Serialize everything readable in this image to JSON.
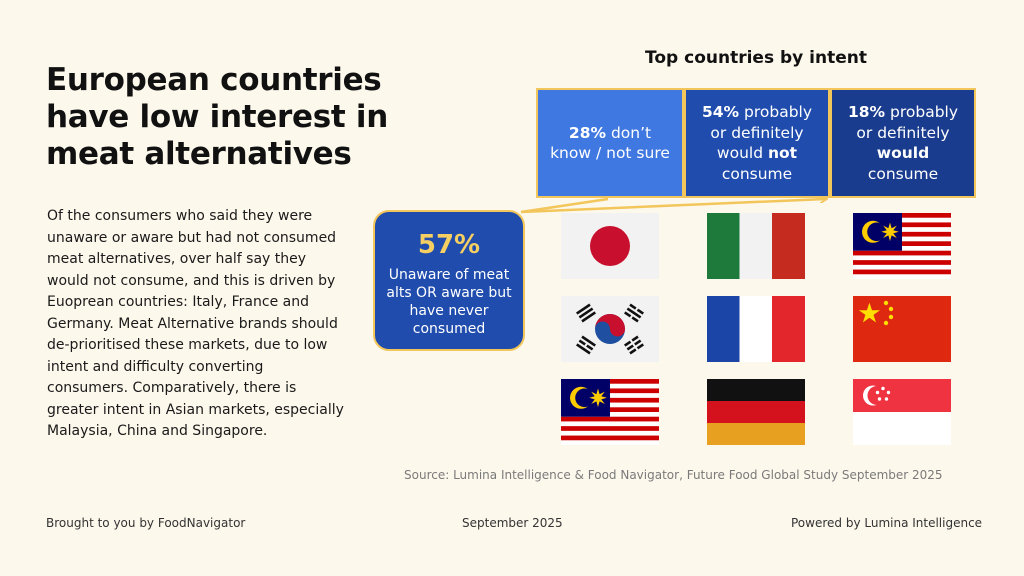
{
  "title": "European countries have low interest in meat alternatives",
  "body": "Of the consumers who said they were unaware or aware but had not consumed meat alternatives, over half say they would not consume, and this is driven by Euoprean countries: Italy, France and Germany. Meat Alternative brands should de-prioritised these markets, due to low intent and difficulty converting consumers. Comparatively, there is greater intent in Asian markets, especially Malaysia, China and Singapore.",
  "chart_title": "Top countries by intent",
  "callout": {
    "percent": "57%",
    "label": "Unaware of meat alts OR aware but have never consumed"
  },
  "segments": [
    {
      "pct": "28%",
      "pre": " don’t know / not sure",
      "bold": "",
      "post": "",
      "countries": [
        "Japan",
        "South Korea",
        "Malaysia"
      ]
    },
    {
      "pct": "54%",
      "pre": " probably or definitely would ",
      "bold": "not",
      "post": " consume",
      "countries": [
        "Italy",
        "France",
        "Germany"
      ]
    },
    {
      "pct": "18%",
      "pre": " probably or definitely ",
      "bold": "would",
      "post": " consume",
      "countries": [
        "Malaysia",
        "China",
        "Singapore"
      ]
    }
  ],
  "colors": {
    "background": "#fdf8ec",
    "box_light": "#3f78e0",
    "box_mid": "#1f4cad",
    "box_dark": "#1a3c8f",
    "border_gold": "#f2c65a",
    "percent_gold": "#f5cf62"
  },
  "icons": [
    "flag-japan-icon",
    "flag-south-korea-icon",
    "flag-malaysia-icon",
    "flag-italy-icon",
    "flag-france-icon",
    "flag-germany-icon",
    "flag-china-icon",
    "flag-singapore-icon"
  ],
  "source": "Source: Lumina Intelligence & Food Navigator, Future Food Global Study September 2025",
  "footer": {
    "left": "Brought to you by FoodNavigator",
    "center": "September 2025",
    "right": "Powered by Lumina Intelligence"
  }
}
